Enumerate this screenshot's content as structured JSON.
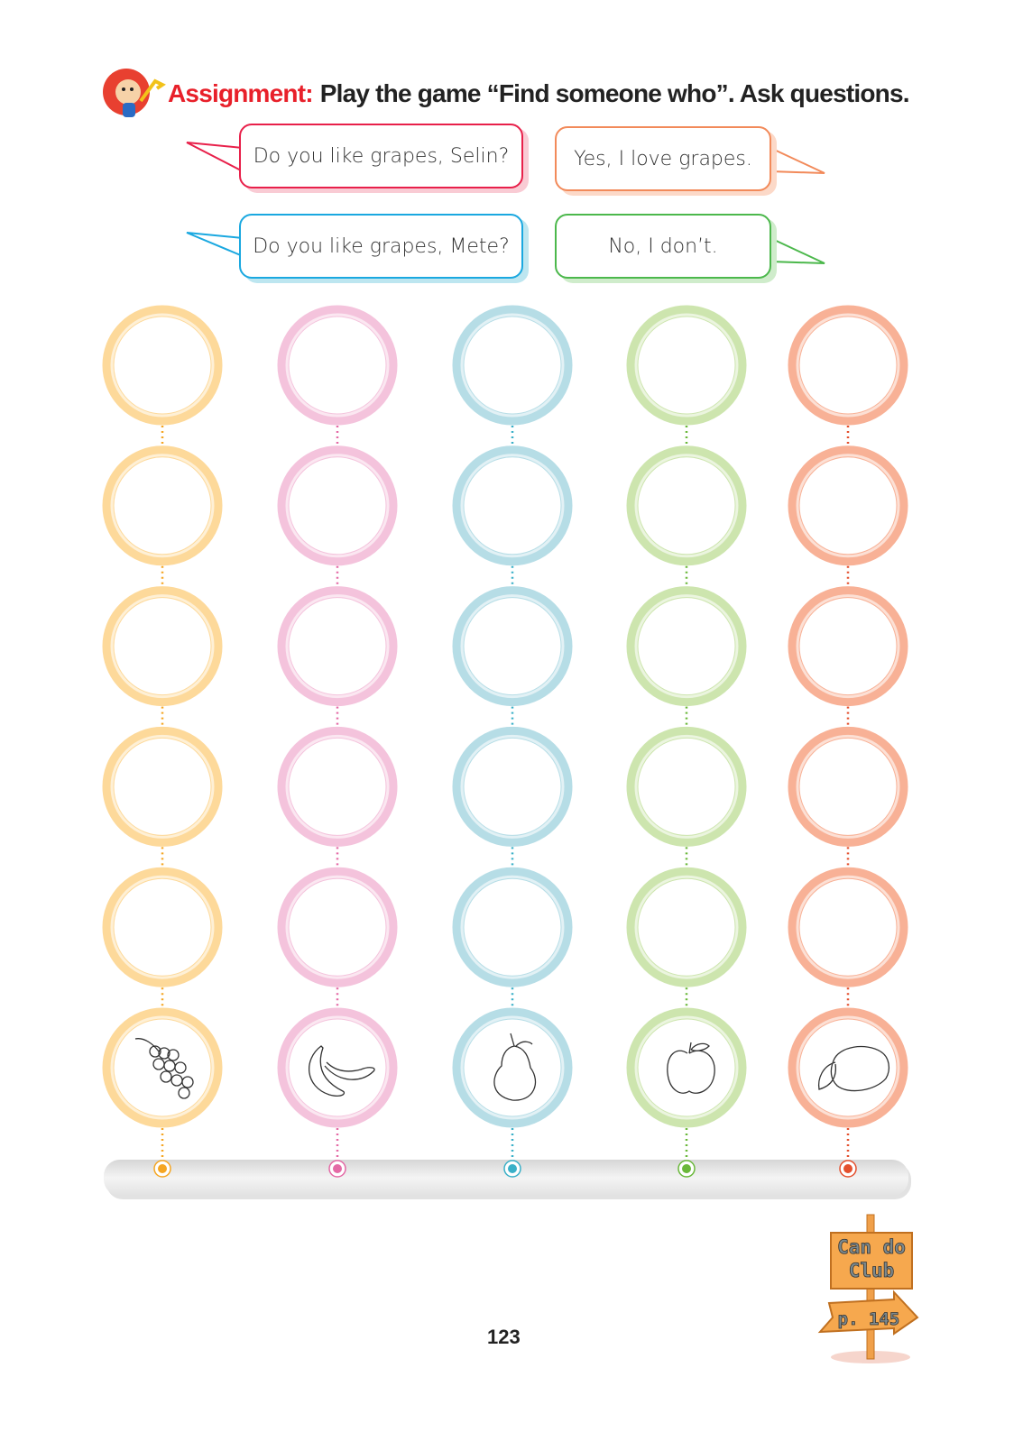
{
  "assignment": {
    "label": "Assignment:",
    "instruction": "Play the game “Find someone who”. Ask questions."
  },
  "dialogue": [
    {
      "text": "Do you like grapes, Selin?",
      "color": "#e8204a"
    },
    {
      "text": "Yes, I love grapes.",
      "color": "#f28a5a"
    },
    {
      "text": "Do you like grapes, Mete?",
      "color": "#1aa8e0"
    },
    {
      "text": "No, I don’t.",
      "color": "#4cb84c"
    }
  ],
  "columns": [
    {
      "fruit": "grapes-icon",
      "ring": "#fdd99a",
      "dot": "#f5a623"
    },
    {
      "fruit": "banana-icon",
      "ring": "#f4c3dc",
      "dot": "#e46aa6"
    },
    {
      "fruit": "pear-icon",
      "ring": "#b6dde6",
      "dot": "#3ab0c8"
    },
    {
      "fruit": "apple-icon",
      "ring": "#cde5ae",
      "dot": "#6ab83a"
    },
    {
      "fruit": "lemon-icon",
      "ring": "#f8b196",
      "dot": "#e4502e"
    }
  ],
  "rows": 6,
  "can_do_club": {
    "title": "Can do Club",
    "page": "p. 145"
  },
  "page_number": "123"
}
